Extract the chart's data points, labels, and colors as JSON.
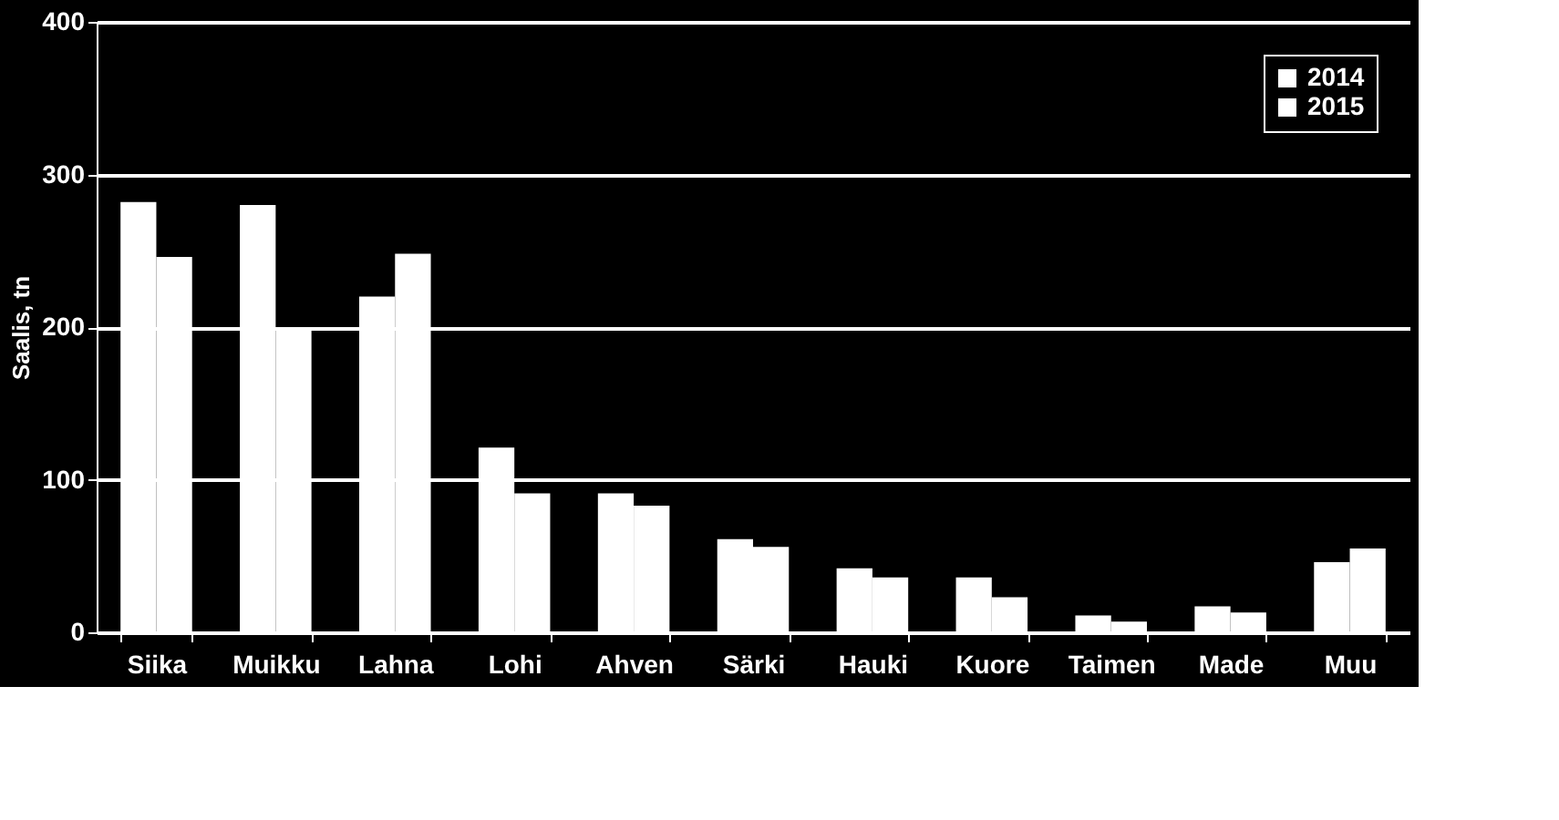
{
  "chart_data": {
    "type": "bar",
    "ylabel": "Saalis, tn",
    "categories": [
      "Siika",
      "Muikku",
      "Lahna",
      "Lohi",
      "Ahven",
      "Särki",
      "Hauki",
      "Kuore",
      "Taimen",
      "Made",
      "Muu"
    ],
    "series": [
      {
        "name": "2014",
        "color": "#ffffff",
        "values": [
          282,
          280,
          220,
          121,
          91,
          61,
          42,
          36,
          11,
          17,
          46
        ]
      },
      {
        "name": "2015",
        "color": "#ffffff",
        "values": [
          246,
          200,
          248,
          91,
          83,
          56,
          36,
          23,
          7,
          13,
          55
        ]
      }
    ],
    "ylim": [
      0,
      400
    ],
    "yticks": [
      0,
      100,
      200,
      300,
      400
    ],
    "grid": "y",
    "legend": "top right"
  }
}
